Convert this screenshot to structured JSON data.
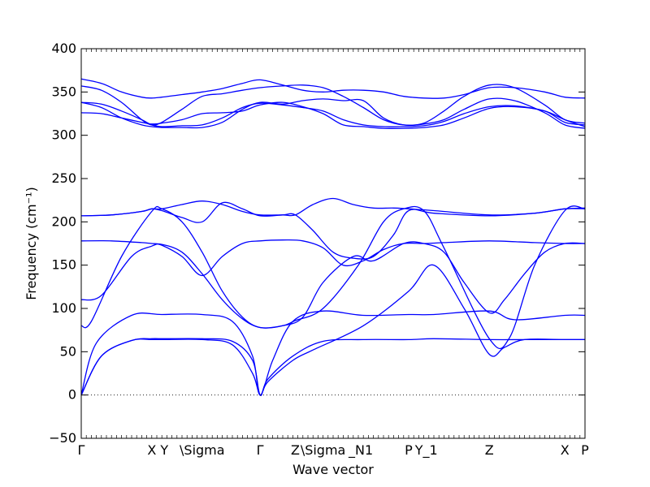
{
  "chart_data": {
    "type": "line",
    "xlabel": "Wave vector",
    "ylabel": "Frequency (cm⁻¹)",
    "ylim": [
      -50,
      400
    ],
    "yticks": [
      -50,
      0,
      50,
      100,
      150,
      200,
      250,
      300,
      350,
      400
    ],
    "xlim": [
      0,
      100
    ],
    "high_symmetry_points": [
      {
        "label": "Γ",
        "x": 0
      },
      {
        "label": "X",
        "x": 14
      },
      {
        "label": "Y",
        "x": 16.5
      },
      {
        "label": "\\Sigma",
        "x": 24
      },
      {
        "label": "Γ",
        "x": 35.5
      },
      {
        "label": "Z",
        "x": 42.5
      },
      {
        "label": "\\Sigma",
        "x": 48
      },
      {
        "label": "_N1",
        "x": 55.5
      },
      {
        "label": "P",
        "x": 65
      },
      {
        "label": "Y_1",
        "x": 68.5
      },
      {
        "label": "Z",
        "x": 81
      },
      {
        "label": "X",
        "x": 96
      },
      {
        "label": "P",
        "x": 100
      }
    ],
    "reference_line": {
      "y": 0,
      "style": "dotted"
    },
    "grid": false,
    "series": [
      {
        "x": [
          0,
          4,
          10,
          14,
          16,
          24,
          30,
          34,
          35.5,
          37,
          42,
          48,
          56,
          65,
          70,
          81,
          88,
          96,
          100
        ],
        "values": [
          0,
          45,
          63,
          65,
          65,
          65,
          62,
          40,
          0,
          18,
          45,
          62,
          64,
          64,
          65,
          64,
          64,
          64,
          64
        ]
      },
      {
        "x": [
          0,
          4,
          10,
          14,
          16,
          24,
          30,
          34,
          35.5,
          37,
          42,
          46,
          56,
          65,
          70,
          76,
          81,
          84,
          88,
          96,
          100
        ],
        "values": [
          0,
          45,
          63,
          64,
          64,
          64,
          58,
          25,
          0,
          15,
          40,
          52,
          80,
          120,
          150,
          100,
          47,
          55,
          64,
          64,
          64
        ]
      },
      {
        "x": [
          0,
          3,
          10,
          16,
          24,
          30,
          34,
          35.5,
          38,
          42,
          48,
          56,
          65,
          70,
          81,
          86,
          96,
          100
        ],
        "values": [
          0,
          60,
          92,
          93,
          93,
          85,
          45,
          0,
          40,
          85,
          97,
          92,
          93,
          93,
          97,
          87,
          92,
          92
        ]
      },
      {
        "x": [
          0,
          2,
          8,
          14,
          16,
          20,
          24,
          28,
          32,
          35.5,
          40,
          42.5,
          48,
          55,
          60,
          64,
          68,
          72,
          81,
          85,
          90,
          96,
          100
        ],
        "values": [
          80,
          85,
          160,
          212,
          215,
          200,
          165,
          120,
          90,
          78,
          80,
          86,
          100,
          150,
          200,
          215,
          213,
          170,
          65,
          66,
          150,
          213,
          215
        ]
      },
      {
        "x": [
          0,
          4,
          10,
          14,
          16,
          20,
          24,
          28,
          32,
          35.5,
          40,
          44,
          48,
          54,
          58,
          64,
          68,
          72,
          76,
          81,
          84,
          88,
          92,
          96,
          100
        ],
        "values": [
          110,
          115,
          160,
          172,
          174,
          165,
          140,
          110,
          88,
          78,
          80,
          90,
          130,
          160,
          155,
          175,
          175,
          165,
          130,
          95,
          110,
          140,
          165,
          175,
          175
        ]
      },
      {
        "x": [
          0,
          6,
          12,
          14,
          16,
          20,
          24,
          28,
          32,
          35.5,
          40,
          44,
          48,
          52,
          56,
          60,
          64,
          68,
          72,
          81,
          90,
          96,
          100
        ],
        "values": [
          178,
          178,
          176,
          175,
          173,
          160,
          138,
          160,
          175,
          178,
          179,
          178,
          170,
          150,
          155,
          168,
          175,
          175,
          176,
          178,
          176,
          175,
          175
        ]
      },
      {
        "x": [
          0,
          6,
          12,
          14,
          16,
          20,
          24,
          28,
          32,
          35.5,
          40,
          42.5,
          46,
          50,
          54,
          58,
          62,
          65,
          70,
          81,
          90,
          96,
          100
        ],
        "values": [
          207,
          208,
          212,
          215,
          215,
          220,
          224,
          220,
          212,
          208,
          208,
          208,
          220,
          227,
          220,
          216,
          216,
          215,
          213,
          208,
          210,
          215,
          215
        ]
      },
      {
        "x": [
          0,
          6,
          12,
          14,
          16,
          20,
          24,
          28,
          32,
          35.5,
          40,
          42.5,
          46,
          50,
          54,
          58,
          62,
          65,
          70,
          81,
          90,
          96,
          100
        ],
        "values": [
          207,
          208,
          212,
          215,
          213,
          205,
          200,
          222,
          215,
          207,
          208,
          208,
          190,
          165,
          158,
          160,
          185,
          213,
          210,
          207,
          210,
          215,
          216
        ]
      },
      {
        "x": [
          0,
          4,
          8,
          12,
          14,
          16,
          20,
          24,
          28,
          32,
          35.5,
          40,
          44,
          48,
          52,
          56,
          60,
          64,
          68,
          72,
          76,
          81,
          86,
          92,
          96,
          100
        ],
        "values": [
          326,
          325,
          320,
          315,
          313,
          314,
          318,
          325,
          326,
          328,
          335,
          338,
          333,
          325,
          312,
          310,
          308,
          308,
          309,
          312,
          320,
          331,
          333,
          328,
          315,
          312
        ]
      },
      {
        "x": [
          0,
          4,
          8,
          12,
          14,
          16,
          20,
          24,
          28,
          32,
          35.5,
          40,
          44,
          48,
          52,
          56,
          60,
          64,
          68,
          72,
          76,
          81,
          86,
          92,
          96,
          100
        ],
        "values": [
          338,
          336,
          328,
          318,
          312,
          310,
          311,
          312,
          320,
          332,
          337,
          335,
          332,
          328,
          318,
          312,
          310,
          310,
          311,
          316,
          325,
          333,
          334,
          328,
          318,
          310
        ]
      },
      {
        "x": [
          0,
          4,
          8,
          12,
          14,
          16,
          20,
          24,
          28,
          32,
          35.5,
          40,
          44,
          48,
          52,
          56,
          60,
          64,
          68,
          72,
          76,
          81,
          86,
          92,
          96,
          100
        ],
        "values": [
          338,
          332,
          320,
          312,
          310,
          309,
          309,
          309,
          315,
          330,
          338,
          336,
          340,
          342,
          340,
          340,
          320,
          312,
          313,
          318,
          330,
          342,
          340,
          326,
          312,
          308
        ]
      },
      {
        "x": [
          0,
          4,
          8,
          12,
          14,
          16,
          20,
          24,
          28,
          32,
          35.5,
          40,
          44,
          48,
          52,
          56,
          60,
          64,
          68,
          72,
          76,
          81,
          86,
          92,
          96,
          100
        ],
        "values": [
          357,
          352,
          338,
          318,
          312,
          315,
          330,
          345,
          348,
          352,
          355,
          357,
          358,
          355,
          345,
          332,
          318,
          312,
          314,
          328,
          345,
          358,
          355,
          335,
          318,
          314
        ]
      },
      {
        "x": [
          0,
          4,
          8,
          12,
          14,
          16,
          20,
          24,
          28,
          32,
          35.5,
          40,
          44,
          48,
          52,
          56,
          60,
          64,
          68,
          72,
          76,
          81,
          86,
          92,
          96,
          100
        ],
        "values": [
          365,
          360,
          350,
          344,
          343,
          344,
          347,
          350,
          354,
          360,
          364,
          358,
          352,
          350,
          352,
          352,
          350,
          345,
          343,
          343,
          347,
          355,
          355,
          350,
          344,
          343
        ]
      }
    ]
  }
}
